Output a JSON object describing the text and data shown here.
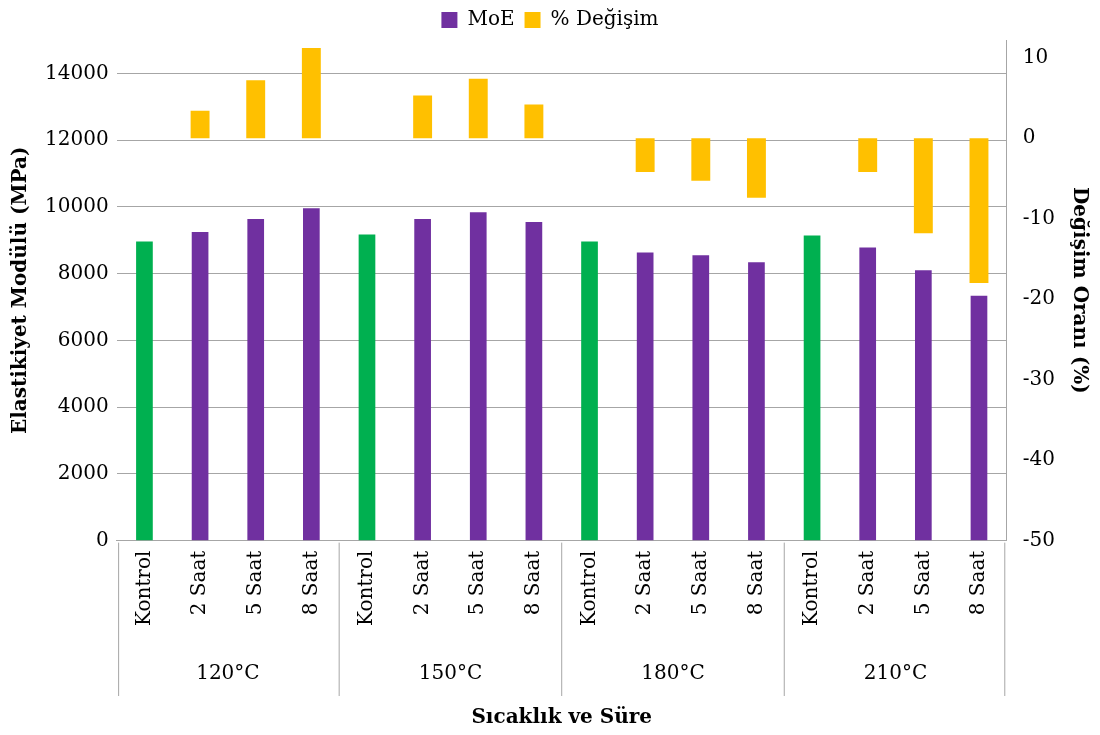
{
  "chart_data": {
    "type": "bar",
    "xlabel": "Sıcaklık ve Süre",
    "ylabel": "Elastikiyet Modülü (MPa)",
    "y2label": "Değişim Oranı (%)",
    "categories": [
      "Kontrol",
      "2 Saat",
      "5 Saat",
      "8 Saat",
      "Kontrol",
      "2 Saat",
      "5 Saat",
      "8 Saat",
      "Kontrol",
      "2 Saat",
      "5 Saat",
      "8 Saat",
      "Kontrol",
      "2 Saat",
      "5 Saat",
      "8 Saat"
    ],
    "annotations": [
      "120°C",
      "150°C",
      "180°C",
      "210°C"
    ],
    "series": [
      {
        "name": "MoE",
        "color": "#7030a0",
        "colors": [
          "#00b050",
          "#7030a0",
          "#7030a0",
          "#7030a0",
          "#00b050",
          "#7030a0",
          "#7030a0",
          "#7030a0",
          "#00b050",
          "#7030a0",
          "#7030a0",
          "#7030a0",
          "#00b050",
          "#7030a0",
          "#7030a0",
          "#7030a0"
        ],
        "values": [
          8960,
          9250,
          9640,
          9960,
          9170,
          9640,
          9840,
          9550,
          8960,
          8630,
          8550,
          8340,
          9140,
          8780,
          8100,
          7340
        ]
      },
      {
        "name": "% Değişim",
        "color": "#ffc000",
        "axis": "y2",
        "values": [
          null,
          3.4,
          7.2,
          11.2,
          null,
          5.3,
          7.4,
          4.2,
          null,
          -4.2,
          -5.3,
          -7.4,
          null,
          -4.2,
          -11.8,
          -18
        ]
      }
    ],
    "ylim": [
      0,
      15000
    ],
    "yticks": [
      0,
      2000,
      4000,
      6000,
      8000,
      10000,
      12000,
      14000
    ],
    "y2lim": [
      -50,
      12.2
    ],
    "y2ticks": [
      -50,
      -40,
      -30,
      -20,
      -10,
      0,
      10
    ],
    "grid": "y",
    "legend": "top"
  }
}
